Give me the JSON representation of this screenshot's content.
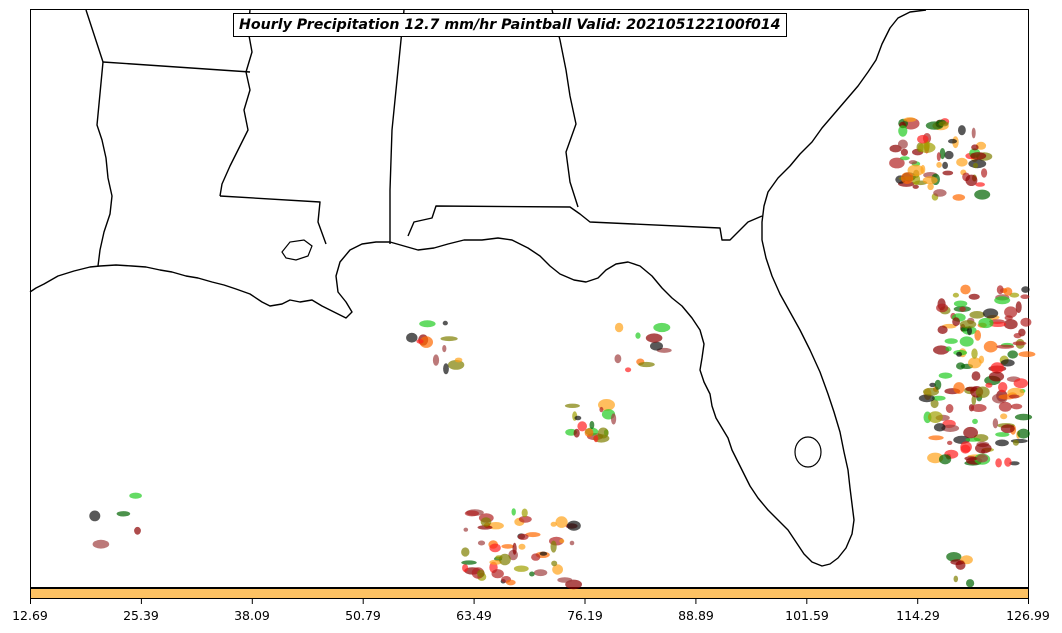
{
  "title": "Hourly Precipitation 12.7 mm/hr Paintball Valid: 202105122100f014",
  "colorbar": {
    "fill_color": "#fdc263",
    "ticks": [
      "12.69",
      "25.39",
      "38.09",
      "50.79",
      "63.49",
      "76.19",
      "88.89",
      "101.59",
      "114.29",
      "126.99"
    ]
  },
  "member_colors": [
    "#8b0000",
    "#b22222",
    "#ff2020",
    "#ff6a00",
    "#ffa31a",
    "#7f7f00",
    "#a0a000",
    "#006400",
    "#22cc22",
    "#111111",
    "#a04040"
  ],
  "icons": [
    "map-canvas",
    "state-borders",
    "coastline",
    "precip-paintballs"
  ]
}
